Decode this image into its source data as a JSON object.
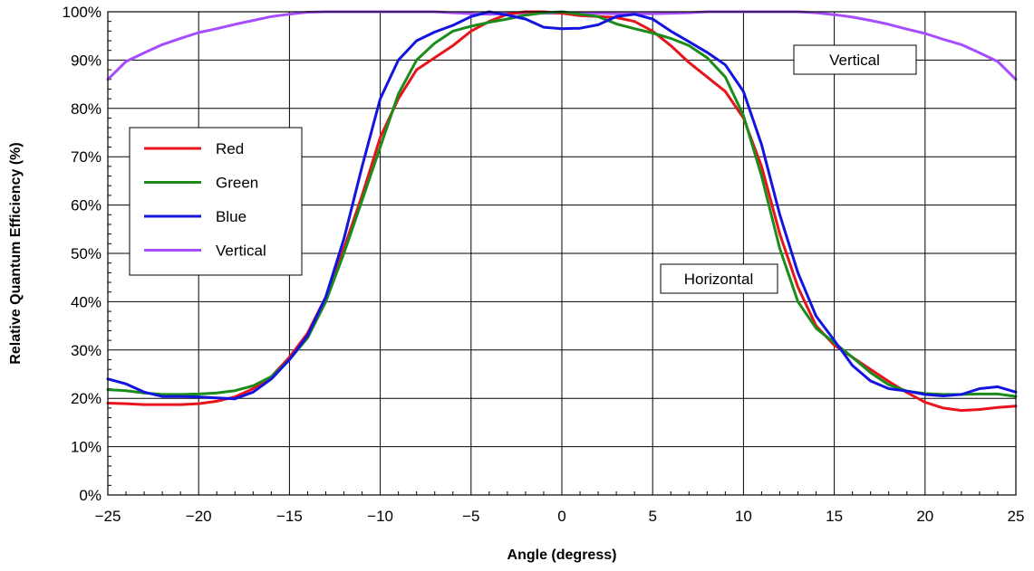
{
  "chart_data": {
    "type": "line",
    "xlabel": "Angle (degress)",
    "ylabel": "Relative Quantum Efficiency (%)",
    "xlim": [
      -25,
      25
    ],
    "ylim": [
      0,
      100
    ],
    "x_ticks": [
      -25,
      -20,
      -15,
      -10,
      -5,
      0,
      5,
      10,
      15,
      20,
      25
    ],
    "x_tick_labels": [
      "−25",
      "−20",
      "−15",
      "−10",
      "−5",
      "0",
      "5",
      "10",
      "15",
      "20",
      "25"
    ],
    "y_ticks": [
      0,
      10,
      20,
      30,
      40,
      50,
      60,
      70,
      80,
      90,
      100
    ],
    "y_tick_labels": [
      "0%",
      "10%",
      "20%",
      "30%",
      "40%",
      "50%",
      "60%",
      "70%",
      "80%",
      "90%",
      "100%"
    ],
    "grid": true,
    "legend_position": "left",
    "annotations": [
      "Vertical",
      "Horizontal"
    ],
    "series": [
      {
        "name": "Red",
        "color": "#e8141c",
        "x": [
          -25,
          -24,
          -23,
          -22,
          -21,
          -20,
          -19,
          -18,
          -17,
          -16,
          -15,
          -14,
          -13,
          -12,
          -11,
          -10,
          -9,
          -8,
          -7,
          -6,
          -5,
          -4,
          -3,
          -2,
          -1,
          0,
          1,
          2,
          3,
          4,
          5,
          6,
          7,
          8,
          9,
          10,
          11,
          12,
          13,
          14,
          15,
          16,
          17,
          18,
          19,
          20,
          21,
          22,
          23,
          24,
          25
        ],
        "y": [
          19,
          18.9,
          18.7,
          18.7,
          18.7,
          18.9,
          19.4,
          20.3,
          22,
          24.5,
          28.5,
          33.5,
          41,
          51,
          62,
          74,
          82,
          88,
          90.5,
          93,
          96,
          98,
          99.5,
          100,
          100,
          99.7,
          99.2,
          99,
          98.8,
          98,
          96,
          93,
          89.5,
          86.5,
          83.5,
          78,
          68,
          54,
          43,
          35,
          31,
          28.5,
          26,
          23.5,
          21.2,
          19.2,
          18,
          17.5,
          17.7,
          18.1,
          18.4
        ]
      },
      {
        "name": "Green",
        "color": "#1a8c1a",
        "x": [
          -25,
          -24,
          -23,
          -22,
          -21,
          -20,
          -19,
          -18,
          -17,
          -16,
          -15,
          -14,
          -13,
          -12,
          -11,
          -10,
          -9,
          -8,
          -7,
          -6,
          -5,
          -4,
          -3,
          -2,
          -1,
          0,
          1,
          2,
          3,
          4,
          5,
          6,
          7,
          8,
          9,
          10,
          11,
          12,
          13,
          14,
          15,
          16,
          17,
          18,
          19,
          20,
          21,
          22,
          23,
          24,
          25
        ],
        "y": [
          21.8,
          21.6,
          21.1,
          20.8,
          20.8,
          20.9,
          21.1,
          21.6,
          22.6,
          24.5,
          28,
          32.5,
          40,
          50,
          61,
          72,
          83,
          90,
          93.5,
          96,
          97,
          97.8,
          98.5,
          99.3,
          99.8,
          100,
          99.5,
          99,
          97.5,
          96.5,
          95.6,
          94.5,
          93,
          90.5,
          86.5,
          78.5,
          66,
          51,
          40,
          34.5,
          31.5,
          28.5,
          25.3,
          22.8,
          21.5,
          21,
          20.8,
          20.8,
          20.9,
          20.9,
          20.4
        ]
      },
      {
        "name": "Blue",
        "color": "#1414e0",
        "x": [
          -25,
          -24,
          -23,
          -22,
          -21,
          -20,
          -19,
          -18,
          -17,
          -16,
          -15,
          -14,
          -13,
          -12,
          -11,
          -10,
          -9,
          -8,
          -7,
          -6,
          -5,
          -4,
          -3,
          -2,
          -1,
          0,
          1,
          2,
          3,
          4,
          5,
          6,
          7,
          8,
          9,
          10,
          11,
          12,
          13,
          14,
          15,
          16,
          17,
          18,
          19,
          20,
          21,
          22,
          23,
          24,
          25
        ],
        "y": [
          24,
          23,
          21.3,
          20.4,
          20.4,
          20.3,
          20.1,
          19.9,
          21.3,
          24,
          28,
          33,
          41,
          53,
          68,
          82,
          90,
          94,
          95.8,
          97.2,
          99,
          100,
          99.3,
          98.5,
          96.8,
          96.5,
          96.6,
          97.3,
          99,
          99.5,
          98.5,
          96,
          93.8,
          91.6,
          89,
          83.5,
          72.5,
          58,
          46,
          37,
          32,
          26.8,
          23.6,
          22,
          21.5,
          20.8,
          20.5,
          20.8,
          22,
          22.4,
          21.3
        ]
      },
      {
        "name": "Vertical",
        "color": "#a64dff",
        "x": [
          -25,
          -24,
          -23,
          -22,
          -21,
          -20,
          -19,
          -18,
          -17,
          -16,
          -15,
          -14,
          -13,
          -12,
          -11,
          -10,
          -9,
          -8,
          -7,
          -6,
          -5,
          -4,
          -3,
          -2,
          -1,
          0,
          1,
          2,
          3,
          4,
          5,
          6,
          7,
          8,
          9,
          10,
          11,
          12,
          13,
          14,
          15,
          16,
          17,
          18,
          19,
          20,
          21,
          22,
          23,
          24,
          25
        ],
        "y": [
          86,
          89.7,
          91.5,
          93.2,
          94.5,
          95.7,
          96.5,
          97.4,
          98.2,
          99,
          99.5,
          99.9,
          100,
          100,
          100,
          100,
          100,
          100,
          100,
          99.8,
          99.6,
          99.5,
          99.6,
          99.7,
          99.7,
          99.7,
          99.7,
          99.7,
          99.6,
          99.6,
          99.6,
          99.7,
          99.8,
          100,
          100,
          100,
          100,
          100,
          100,
          99.8,
          99.4,
          98.9,
          98.2,
          97.4,
          96.4,
          95.5,
          94.3,
          93.2,
          91.5,
          89.7,
          86
        ]
      }
    ]
  }
}
